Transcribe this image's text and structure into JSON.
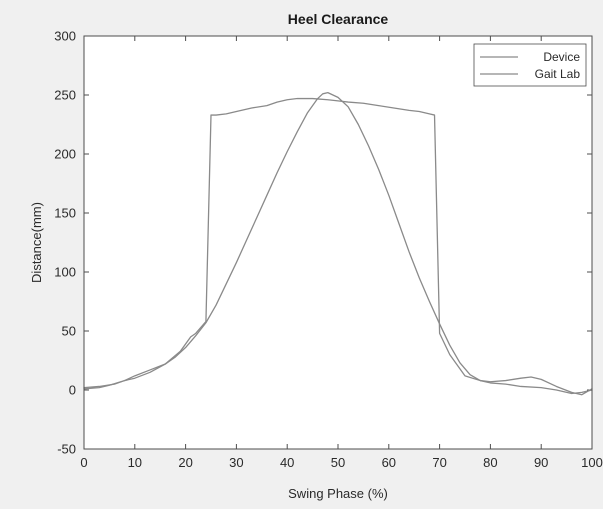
{
  "chart_data": {
    "type": "line",
    "title": "Heel Clearance",
    "xlabel": "Swing Phase (%)",
    "ylabel": "Distance(mm)",
    "xlim": [
      0,
      100
    ],
    "ylim": [
      -50,
      300
    ],
    "x_ticks": [
      0,
      10,
      20,
      30,
      40,
      50,
      60,
      70,
      80,
      90,
      100
    ],
    "y_ticks": [
      -50,
      0,
      50,
      100,
      150,
      200,
      250,
      300
    ],
    "legend_position": "top-right",
    "grid": false,
    "series": [
      {
        "name": "Device",
        "color": "#8a8a8a",
        "x": [
          0,
          3,
          6,
          8,
          10,
          13,
          16,
          19,
          21,
          22,
          24,
          25,
          26,
          28,
          30,
          33,
          36,
          38,
          40,
          42,
          45,
          48,
          50,
          52,
          55,
          58,
          61,
          64,
          66,
          68,
          69,
          70,
          72,
          75,
          78,
          80,
          83,
          86,
          88,
          90,
          93,
          96,
          98,
          100
        ],
        "y": [
          2,
          3,
          5,
          8,
          10,
          15,
          22,
          33,
          45,
          48,
          58,
          233,
          233,
          234,
          236,
          239,
          241,
          244,
          246,
          247,
          247,
          246,
          245,
          244,
          243,
          241,
          239,
          237,
          236,
          234,
          233,
          48,
          30,
          12,
          8,
          7,
          8,
          10,
          11,
          9,
          3,
          -2,
          -4,
          1
        ]
      },
      {
        "name": "Gait Lab",
        "color": "#8a8a8a",
        "x": [
          0,
          3,
          5,
          8,
          10,
          13,
          16,
          18,
          20,
          22,
          24,
          26,
          28,
          30,
          32,
          34,
          36,
          38,
          40,
          42,
          44,
          46,
          47,
          48,
          50,
          52,
          54,
          56,
          58,
          60,
          62,
          64,
          66,
          68,
          70,
          72,
          74,
          76,
          78,
          80,
          83,
          86,
          90,
          93,
          96,
          98,
          100
        ],
        "y": [
          1,
          2,
          4,
          8,
          12,
          17,
          22,
          28,
          36,
          46,
          57,
          72,
          90,
          108,
          127,
          146,
          165,
          184,
          202,
          219,
          235,
          247,
          251,
          252,
          248,
          240,
          225,
          207,
          187,
          165,
          141,
          117,
          95,
          75,
          56,
          38,
          23,
          13,
          8,
          6,
          5,
          3,
          2,
          0,
          -3,
          -2,
          0
        ]
      }
    ]
  }
}
